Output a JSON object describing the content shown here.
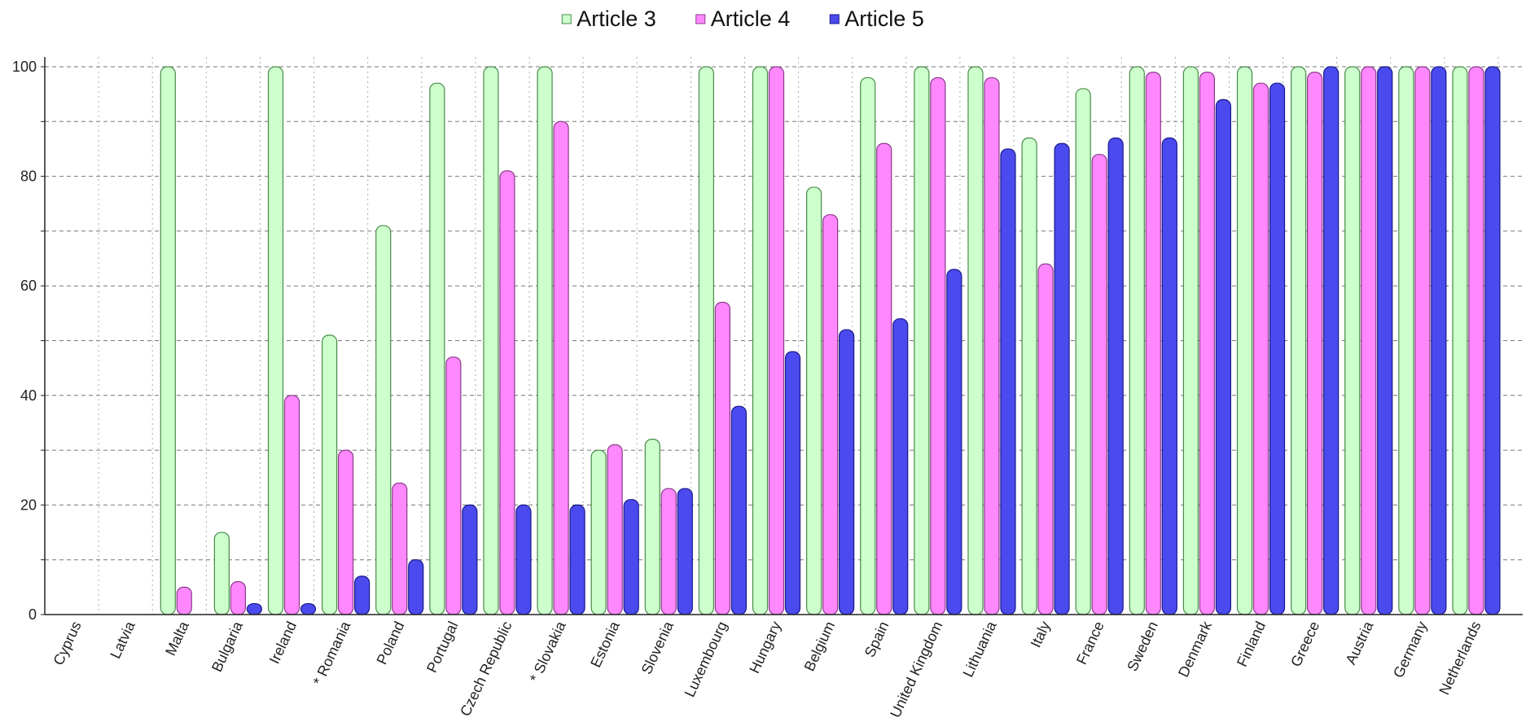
{
  "chart_data": {
    "type": "bar",
    "categories": [
      "Cyprus",
      "Latvia",
      "Malta",
      "Bulgaria",
      "Ireland",
      "* Romania",
      "Poland",
      "Portugal",
      "Czech Republic",
      "* Slovakia",
      "Estonia",
      "Slovenia",
      "Luxembourg",
      "Hungary",
      "Belgium",
      "Spain",
      "United Kingdom",
      "Lithuania",
      "Italy",
      "France",
      "Sweden",
      "Denmark",
      "Finland",
      "Greece",
      "Austria",
      "Germany",
      "Netherlands"
    ],
    "series": [
      {
        "name": "Article 3",
        "color": "#ccffcc",
        "stroke": "#4a8a4a",
        "values": [
          0,
          0,
          100,
          15,
          100,
          51,
          71,
          97,
          100,
          100,
          30,
          32,
          100,
          100,
          78,
          98,
          100,
          100,
          87,
          96,
          100,
          100,
          100,
          100,
          100,
          100,
          100
        ]
      },
      {
        "name": "Article 4",
        "color": "#ff88ff",
        "stroke": "#8a3a8a",
        "values": [
          0,
          0,
          5,
          6,
          40,
          30,
          24,
          47,
          81,
          90,
          31,
          23,
          57,
          100,
          73,
          86,
          98,
          98,
          64,
          84,
          99,
          99,
          97,
          99,
          100,
          100,
          100
        ]
      },
      {
        "name": "Article 5",
        "color": "#4a4aee",
        "stroke": "#1a1a8a",
        "values": [
          0,
          0,
          0,
          2,
          2,
          7,
          10,
          20,
          20,
          20,
          21,
          23,
          38,
          48,
          52,
          54,
          63,
          85,
          86,
          87,
          87,
          94,
          97,
          100,
          100,
          100,
          100
        ]
      }
    ],
    "y_ticks": [
      "0",
      "20",
      "40",
      "60",
      "80",
      "100"
    ],
    "ylim": [
      0,
      100
    ],
    "grid": true,
    "legend": "top-center",
    "title": "",
    "xlabel": "",
    "ylabel": ""
  }
}
